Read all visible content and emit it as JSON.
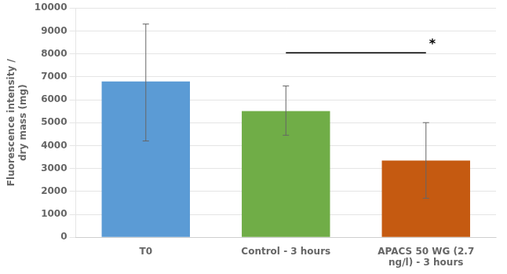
{
  "chart_data": {
    "type": "bar",
    "categories": [
      "T0",
      "Control - 3 hours",
      "APACS 50 WG (2.7\nng/l) - 3 hours"
    ],
    "values": [
      6800,
      5500,
      3350
    ],
    "errors_upper": [
      2500,
      1100,
      1650
    ],
    "errors_lower": [
      2600,
      1050,
      1650
    ],
    "colors": [
      "#5b9bd5",
      "#70ad47",
      "#c55a11"
    ],
    "ylabel": "Fluorescence intensity /\ndry mass (mg)",
    "ylim": [
      0,
      10000
    ],
    "yticks": [
      0,
      1000,
      2000,
      3000,
      4000,
      5000,
      6000,
      7000,
      8000,
      9000,
      10000
    ],
    "grid": true,
    "annotations": [
      {
        "text": "*",
        "from": "Control - 3 hours",
        "to": "APACS 50 WG (2.7\nng/l) - 3 hours",
        "y": 8050
      }
    ]
  }
}
